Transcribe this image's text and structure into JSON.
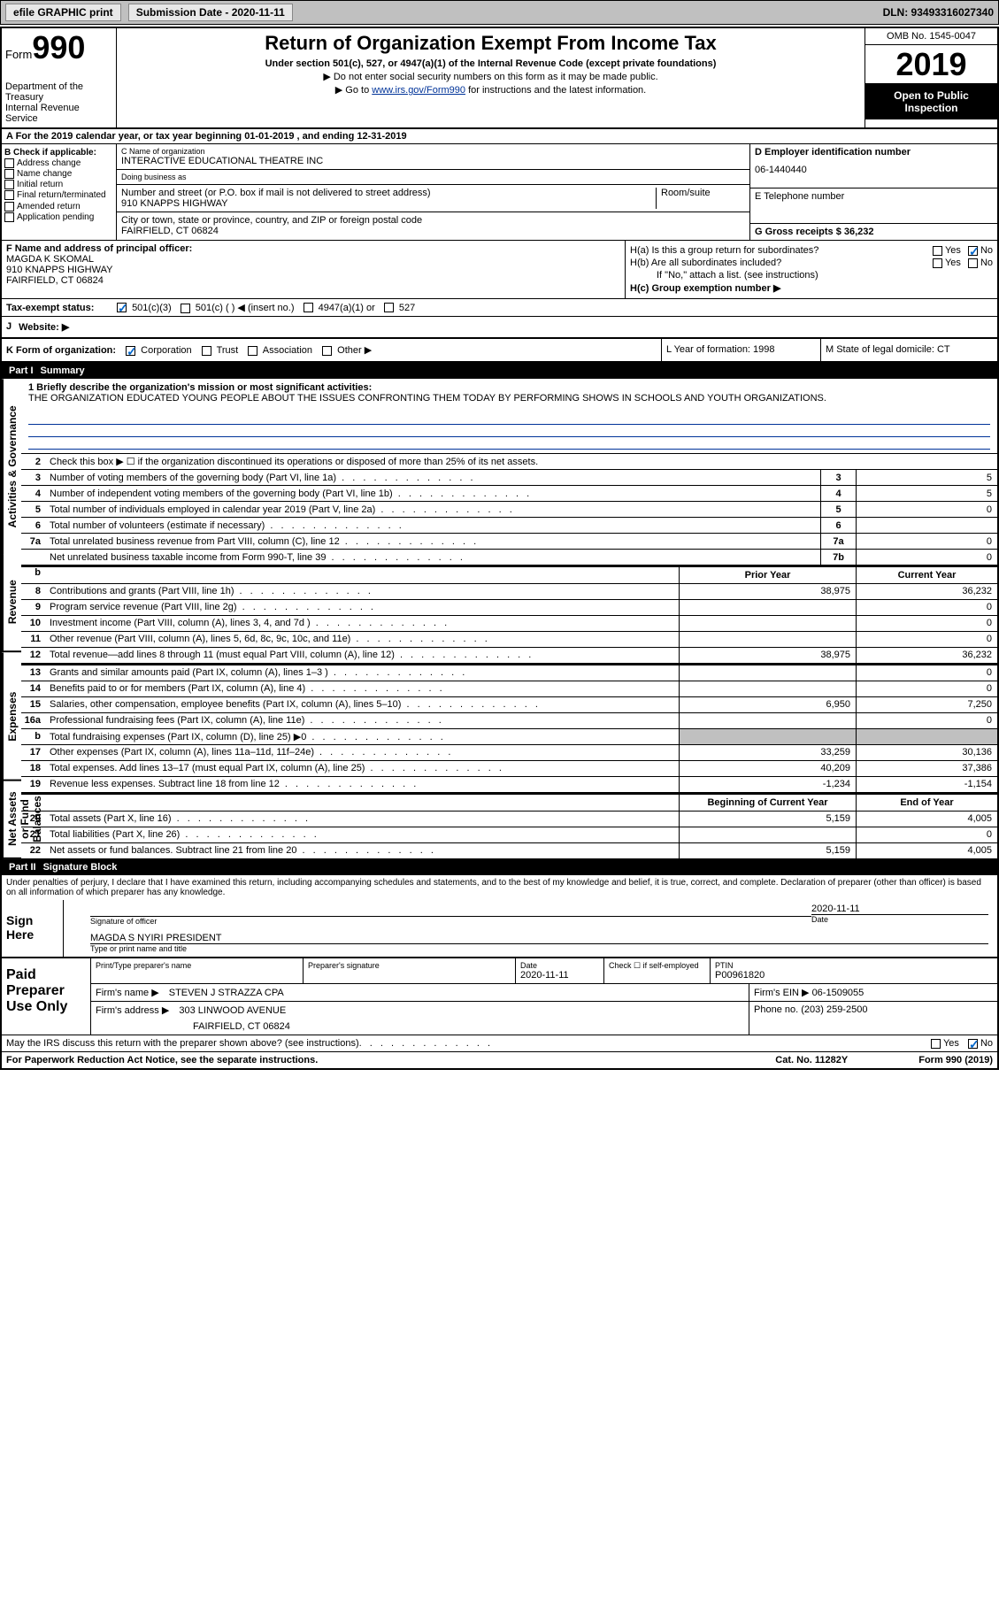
{
  "topbar": {
    "efile": "efile GRAPHIC print",
    "submission": "Submission Date - 2020-11-11",
    "dln": "DLN: 93493316027340"
  },
  "header": {
    "form_label": "Form",
    "form_num": "990",
    "dept": "Department of the Treasury\nInternal Revenue Service",
    "title": "Return of Organization Exempt From Income Tax",
    "subtitle": "Under section 501(c), 527, or 4947(a)(1) of the Internal Revenue Code (except private foundations)",
    "note1": "▶ Do not enter social security numbers on this form as it may be made public.",
    "note2_pre": "▶ Go to ",
    "note2_link": "www.irs.gov/Form990",
    "note2_post": " for instructions and the latest information.",
    "omb": "OMB No. 1545-0047",
    "year": "2019",
    "open": "Open to Public Inspection"
  },
  "row_a": "A For the 2019 calendar year, or tax year beginning 01-01-2019    , and ending 12-31-2019",
  "section_b": {
    "label": "B Check if applicable:",
    "items": [
      "Address change",
      "Name change",
      "Initial return",
      "Final return/terminated",
      "Amended return",
      "Application pending"
    ]
  },
  "section_c": {
    "name_label": "C Name of organization",
    "name": "INTERACTIVE EDUCATIONAL THEATRE INC",
    "dba_label": "Doing business as",
    "dba": "",
    "addr_label": "Number and street (or P.O. box if mail is not delivered to street address)",
    "room_label": "Room/suite",
    "addr": "910 KNAPPS HIGHWAY",
    "city_label": "City or town, state or province, country, and ZIP or foreign postal code",
    "city": "FAIRFIELD, CT  06824"
  },
  "section_d": {
    "ein_label": "D Employer identification number",
    "ein": "06-1440440",
    "tel_label": "E Telephone number",
    "tel": "",
    "gross_label": "G Gross receipts $ 36,232"
  },
  "section_f": {
    "label": "F  Name and address of principal officer:",
    "name": "MAGDA K SKOMAL",
    "addr": "910 KNAPPS HIGHWAY",
    "city": "FAIRFIELD, CT  06824"
  },
  "section_h": {
    "a_label": "H(a)  Is this a group return for subordinates?",
    "b_label": "H(b)  Are all subordinates included?",
    "b_note": "If \"No,\" attach a list. (see instructions)",
    "c_label": "H(c)  Group exemption number ▶",
    "yes": "Yes",
    "no": "No"
  },
  "tax_status": {
    "label": "Tax-exempt status:",
    "opts": [
      "501(c)(3)",
      "501(c) (  ) ◀ (insert no.)",
      "4947(a)(1) or",
      "527"
    ]
  },
  "website": {
    "j": "J",
    "label": "Website: ▶"
  },
  "klm": {
    "k": "K Form of organization:",
    "k_opts": [
      "Corporation",
      "Trust",
      "Association",
      "Other ▶"
    ],
    "l": "L Year of formation: 1998",
    "m": "M State of legal domicile: CT"
  },
  "part1": {
    "header": "Part I",
    "title": "Summary",
    "sections": {
      "governance": "Activities & Governance",
      "revenue": "Revenue",
      "expenses": "Expenses",
      "netassets": "Net Assets or Fund Balances"
    },
    "line1_label": "1  Briefly describe the organization's mission or most significant activities:",
    "mission": "THE ORGANIZATION EDUCATED YOUNG PEOPLE ABOUT THE ISSUES CONFRONTING THEM TODAY BY PERFORMING SHOWS IN SCHOOLS AND YOUTH ORGANIZATIONS.",
    "line2": "Check this box ▶ ☐  if the organization discontinued its operations or disposed of more than 25% of its net assets.",
    "lines_gov": [
      {
        "n": "3",
        "t": "Number of voting members of the governing body (Part VI, line 1a)",
        "c": "3",
        "v": "5"
      },
      {
        "n": "4",
        "t": "Number of independent voting members of the governing body (Part VI, line 1b)",
        "c": "4",
        "v": "5"
      },
      {
        "n": "5",
        "t": "Total number of individuals employed in calendar year 2019 (Part V, line 2a)",
        "c": "5",
        "v": "0"
      },
      {
        "n": "6",
        "t": "Total number of volunteers (estimate if necessary)",
        "c": "6",
        "v": ""
      },
      {
        "n": "7a",
        "t": "Total unrelated business revenue from Part VIII, column (C), line 12",
        "c": "7a",
        "v": "0"
      },
      {
        "n": "",
        "t": "Net unrelated business taxable income from Form 990-T, line 39",
        "c": "7b",
        "v": "0"
      }
    ],
    "col_headers": {
      "b": "b",
      "prior": "Prior Year",
      "current": "Current Year"
    },
    "lines_rev": [
      {
        "n": "8",
        "t": "Contributions and grants (Part VIII, line 1h)",
        "v1": "38,975",
        "v2": "36,232"
      },
      {
        "n": "9",
        "t": "Program service revenue (Part VIII, line 2g)",
        "v1": "",
        "v2": "0"
      },
      {
        "n": "10",
        "t": "Investment income (Part VIII, column (A), lines 3, 4, and 7d )",
        "v1": "",
        "v2": "0"
      },
      {
        "n": "11",
        "t": "Other revenue (Part VIII, column (A), lines 5, 6d, 8c, 9c, 10c, and 11e)",
        "v1": "",
        "v2": "0"
      },
      {
        "n": "12",
        "t": "Total revenue—add lines 8 through 11 (must equal Part VIII, column (A), line 12)",
        "v1": "38,975",
        "v2": "36,232"
      }
    ],
    "lines_exp": [
      {
        "n": "13",
        "t": "Grants and similar amounts paid (Part IX, column (A), lines 1–3 )",
        "v1": "",
        "v2": "0"
      },
      {
        "n": "14",
        "t": "Benefits paid to or for members (Part IX, column (A), line 4)",
        "v1": "",
        "v2": "0"
      },
      {
        "n": "15",
        "t": "Salaries, other compensation, employee benefits (Part IX, column (A), lines 5–10)",
        "v1": "6,950",
        "v2": "7,250"
      },
      {
        "n": "16a",
        "t": "Professional fundraising fees (Part IX, column (A), line 11e)",
        "v1": "",
        "v2": "0"
      },
      {
        "n": "b",
        "t": "Total fundraising expenses (Part IX, column (D), line 25) ▶0",
        "v1": "shaded",
        "v2": "shaded"
      },
      {
        "n": "17",
        "t": "Other expenses (Part IX, column (A), lines 11a–11d, 11f–24e)",
        "v1": "33,259",
        "v2": "30,136"
      },
      {
        "n": "18",
        "t": "Total expenses. Add lines 13–17 (must equal Part IX, column (A), line 25)",
        "v1": "40,209",
        "v2": "37,386"
      },
      {
        "n": "19",
        "t": "Revenue less expenses. Subtract line 18 from line 12",
        "v1": "-1,234",
        "v2": "-1,154"
      }
    ],
    "net_headers": {
      "begin": "Beginning of Current Year",
      "end": "End of Year"
    },
    "lines_net": [
      {
        "n": "20",
        "t": "Total assets (Part X, line 16)",
        "v1": "5,159",
        "v2": "4,005"
      },
      {
        "n": "21",
        "t": "Total liabilities (Part X, line 26)",
        "v1": "",
        "v2": "0"
      },
      {
        "n": "22",
        "t": "Net assets or fund balances. Subtract line 21 from line 20",
        "v1": "5,159",
        "v2": "4,005"
      }
    ]
  },
  "part2": {
    "header": "Part II",
    "title": "Signature Block",
    "penalty": "Under penalties of perjury, I declare that I have examined this return, including accompanying schedules and statements, and to the best of my knowledge and belief, it is true, correct, and complete. Declaration of preparer (other than officer) is based on all information of which preparer has any knowledge.",
    "sign_here": "Sign Here",
    "sig_officer": "Signature of officer",
    "sig_date": "2020-11-11",
    "date_label": "Date",
    "officer_name": "MAGDA S NYIRI PRESIDENT",
    "type_name": "Type or print name and title",
    "paid_prep": "Paid Preparer Use Only",
    "prep_name_label": "Print/Type preparer's name",
    "prep_sig_label": "Preparer's signature",
    "prep_date": "2020-11-11",
    "check_self": "Check ☐ if self-employed",
    "ptin_label": "PTIN",
    "ptin": "P00961820",
    "firm_name_label": "Firm's name    ▶",
    "firm_name": "STEVEN J STRAZZA CPA",
    "firm_ein_label": "Firm's EIN ▶",
    "firm_ein": "06-1509055",
    "firm_addr_label": "Firm's address ▶",
    "firm_addr": "303 LINWOOD AVENUE",
    "firm_city": "FAIRFIELD, CT  06824",
    "phone_label": "Phone no.",
    "phone": "(203) 259-2500",
    "discuss": "May the IRS discuss this return with the preparer shown above? (see instructions)"
  },
  "footer": {
    "paperwork": "For Paperwork Reduction Act Notice, see the separate instructions.",
    "cat": "Cat. No. 11282Y",
    "form": "Form 990 (2019)"
  }
}
